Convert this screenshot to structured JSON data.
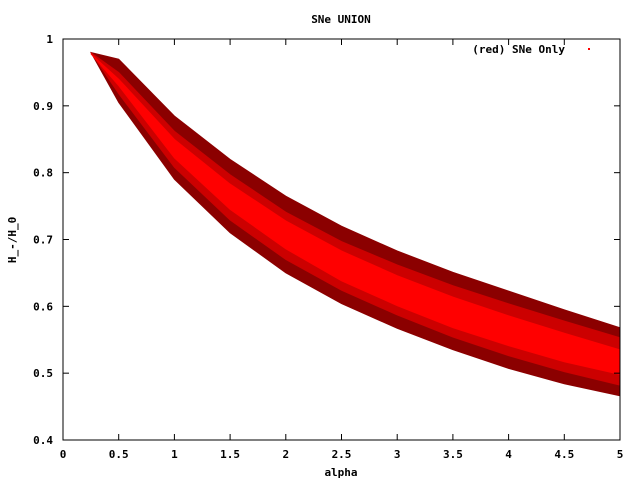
{
  "chart_data": {
    "type": "area",
    "title": "SNe UNION",
    "xlabel": "alpha",
    "ylabel": "H_-/H_0",
    "xlim": [
      0,
      5
    ],
    "ylim": [
      0.4,
      1.0
    ],
    "xticks": [
      "0",
      "0.5",
      "1",
      "1.5",
      "2",
      "2.5",
      "3",
      "3.5",
      "4",
      "4.5",
      "5"
    ],
    "yticks": [
      "0.4",
      "0.5",
      "0.6",
      "0.7",
      "0.8",
      "0.9",
      "1"
    ],
    "legend": {
      "label": "(red) SNe Only",
      "placement": "top-right"
    },
    "grid": false,
    "alpha": [
      0.25,
      0.5,
      1.0,
      1.5,
      2.0,
      2.5,
      3.0,
      3.5,
      4.0,
      4.5,
      5.0
    ],
    "regions": [
      {
        "level": "outer",
        "color": "#8b0000",
        "upper": [
          0.98,
          0.97,
          0.885,
          0.82,
          0.765,
          0.72,
          0.683,
          0.651,
          0.623,
          0.595,
          0.568
        ],
        "lower": [
          0.98,
          0.905,
          0.79,
          0.71,
          0.65,
          0.604,
          0.567,
          0.535,
          0.507,
          0.484,
          0.466
        ]
      },
      {
        "level": "middle",
        "color": "#cc0000",
        "upper": [
          0.98,
          0.95,
          0.862,
          0.797,
          0.741,
          0.697,
          0.662,
          0.631,
          0.604,
          0.578,
          0.553
        ],
        "lower": [
          0.98,
          0.918,
          0.808,
          0.729,
          0.67,
          0.624,
          0.587,
          0.554,
          0.526,
          0.502,
          0.482
        ]
      },
      {
        "level": "inner",
        "color": "#ff0000",
        "upper": [
          0.978,
          0.94,
          0.85,
          0.783,
          0.728,
          0.683,
          0.646,
          0.614,
          0.586,
          0.56,
          0.535
        ],
        "lower": [
          0.978,
          0.93,
          0.822,
          0.745,
          0.686,
          0.638,
          0.601,
          0.568,
          0.541,
          0.517,
          0.498
        ]
      }
    ]
  }
}
